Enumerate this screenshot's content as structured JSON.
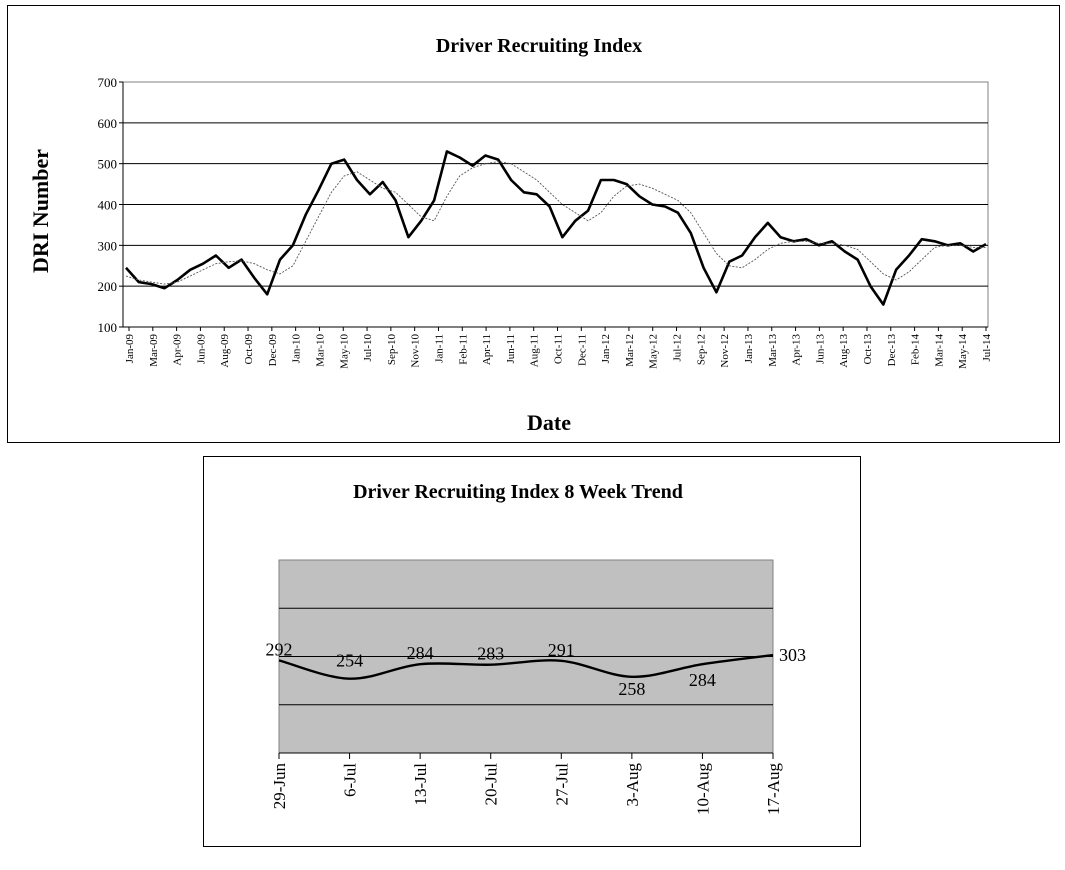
{
  "chart_data": [
    {
      "type": "line",
      "title": "Driver Recruiting Index",
      "xlabel": "Date",
      "ylabel": "DRI Number",
      "ylim": [
        100,
        700
      ],
      "yticks": [
        100,
        200,
        300,
        400,
        500,
        600,
        700
      ],
      "grid": true,
      "x_tick_labels": [
        "Jan-09",
        "Mar-09",
        "Apr-09",
        "Jun-09",
        "Aug-09",
        "Oct-09",
        "Dec-09",
        "Jan-10",
        "Mar-10",
        "May-10",
        "Jul-10",
        "Sep-10",
        "Nov-10",
        "Jan-11",
        "Feb-11",
        "Apr-11",
        "Jun-11",
        "Aug-11",
        "Oct-11",
        "Dec-11",
        "Jan-12",
        "Mar-12",
        "May-12",
        "Jul-12",
        "Sep-12",
        "Nov-12",
        "Jan-13",
        "Mar-13",
        "Apr-13",
        "Jun-13",
        "Aug-13",
        "Oct-13",
        "Dec-13",
        "Feb-14",
        "Mar-14",
        "May-14",
        "Jul-14"
      ],
      "series": [
        {
          "style": "thick-black",
          "x": [
            "Jan-09",
            "Feb-09",
            "Mar-09",
            "Apr-09",
            "May-09",
            "Jun-09",
            "Jul-09",
            "Aug-09",
            "Sep-09",
            "Oct-09",
            "Nov-09",
            "Dec-09",
            "Jan-10",
            "Feb-10",
            "Mar-10",
            "Apr-10",
            "May-10",
            "Jun-10",
            "Jul-10",
            "Aug-10",
            "Sep-10",
            "Oct-10",
            "Nov-10",
            "Dec-10",
            "Jan-11",
            "Feb-11",
            "Mar-11",
            "Apr-11",
            "May-11",
            "Jun-11",
            "Jul-11",
            "Aug-11",
            "Sep-11",
            "Oct-11",
            "Nov-11",
            "Dec-11",
            "Jan-12",
            "Feb-12",
            "Mar-12",
            "Apr-12",
            "May-12",
            "Jun-12",
            "Jul-12",
            "Aug-12",
            "Sep-12",
            "Oct-12",
            "Nov-12",
            "Dec-12",
            "Jan-13",
            "Feb-13",
            "Mar-13",
            "Apr-13",
            "May-13",
            "Jun-13",
            "Jul-13",
            "Aug-13",
            "Sep-13",
            "Oct-13",
            "Nov-13",
            "Dec-13",
            "Jan-14",
            "Feb-14",
            "Mar-14",
            "Apr-14",
            "May-14",
            "Jun-14",
            "Jul-14",
            "Aug-14"
          ],
          "values": [
            245,
            210,
            205,
            195,
            215,
            240,
            255,
            275,
            245,
            265,
            220,
            180,
            265,
            300,
            375,
            435,
            500,
            510,
            460,
            425,
            455,
            410,
            320,
            360,
            410,
            530,
            515,
            495,
            520,
            510,
            460,
            430,
            425,
            395,
            320,
            360,
            385,
            460,
            460,
            450,
            420,
            400,
            395,
            380,
            330,
            245,
            185,
            260,
            275,
            320,
            355,
            320,
            310,
            315,
            300,
            310,
            285,
            265,
            200,
            155,
            240,
            275,
            315,
            310,
            300,
            305,
            285,
            303
          ]
        },
        {
          "style": "thin-dotted-moving-average",
          "x": [
            "Jan-09",
            "Feb-09",
            "Mar-09",
            "Apr-09",
            "May-09",
            "Jun-09",
            "Jul-09",
            "Aug-09",
            "Sep-09",
            "Oct-09",
            "Nov-09",
            "Dec-09",
            "Jan-10",
            "Feb-10",
            "Mar-10",
            "Apr-10",
            "May-10",
            "Jun-10",
            "Jul-10",
            "Aug-10",
            "Sep-10",
            "Oct-10",
            "Nov-10",
            "Dec-10",
            "Jan-11",
            "Feb-11",
            "Mar-11",
            "Apr-11",
            "May-11",
            "Jun-11",
            "Jul-11",
            "Aug-11",
            "Sep-11",
            "Oct-11",
            "Nov-11",
            "Dec-11",
            "Jan-12",
            "Feb-12",
            "Mar-12",
            "Apr-12",
            "May-12",
            "Jun-12",
            "Jul-12",
            "Aug-12",
            "Sep-12",
            "Oct-12",
            "Nov-12",
            "Dec-12",
            "Jan-13",
            "Feb-13",
            "Mar-13",
            "Apr-13",
            "May-13",
            "Jun-13",
            "Jul-13",
            "Aug-13",
            "Sep-13",
            "Oct-13",
            "Nov-13",
            "Dec-13",
            "Jan-14",
            "Feb-14",
            "Mar-14",
            "Apr-14",
            "May-14",
            "Jun-14",
            "Jul-14",
            "Aug-14"
          ],
          "values": [
            225,
            215,
            210,
            205,
            210,
            225,
            240,
            255,
            260,
            262,
            255,
            240,
            230,
            250,
            310,
            370,
            430,
            470,
            480,
            460,
            440,
            430,
            400,
            370,
            360,
            420,
            470,
            490,
            500,
            505,
            500,
            480,
            460,
            430,
            400,
            380,
            360,
            380,
            420,
            445,
            450,
            440,
            425,
            410,
            380,
            330,
            280,
            250,
            245,
            265,
            290,
            305,
            310,
            310,
            305,
            305,
            300,
            290,
            260,
            230,
            215,
            235,
            265,
            295,
            300,
            300,
            295,
            295
          ]
        }
      ]
    },
    {
      "type": "line",
      "title": "Driver Recruiting Index 8 Week Trend",
      "categories": [
        "29-Jun",
        "6-Jul",
        "13-Jul",
        "20-Jul",
        "27-Jul",
        "3-Aug",
        "10-Aug",
        "17-Aug"
      ],
      "values": [
        292,
        254,
        284,
        283,
        291,
        258,
        284,
        303
      ],
      "data_labels": [
        "292",
        "254",
        "284",
        "283",
        "291",
        "258",
        "284",
        "303"
      ],
      "ylim": [
        100,
        500
      ],
      "grid": true,
      "plot_background": "#c0c0c0"
    }
  ]
}
